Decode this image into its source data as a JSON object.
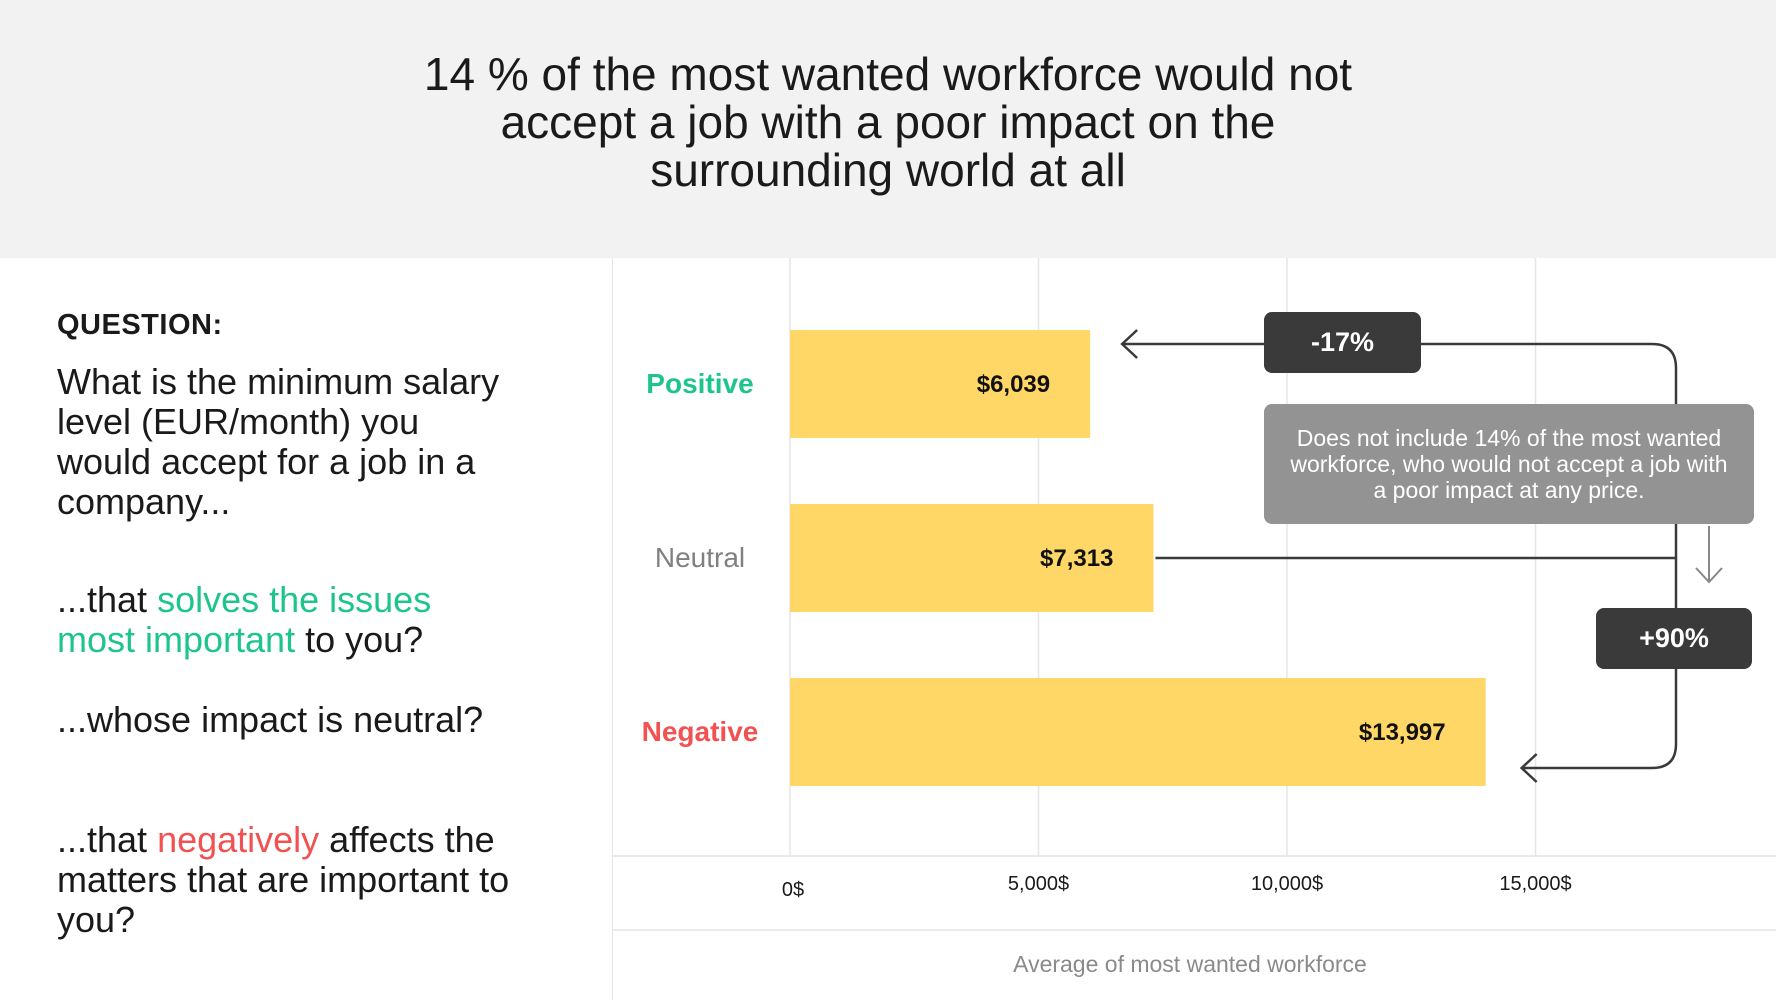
{
  "header": {
    "title": "14 % of the most wanted workforce would not accept a job with a poor impact on the surrounding world at all"
  },
  "question": {
    "label": "QUESTION:",
    "main": "What is the minimum salary level (EUR/month) you would accept for a job in a company...",
    "options": [
      {
        "pre": "...that ",
        "highlight": "solves the issues most important",
        "post": " to you?"
      },
      {
        "pre": "...whose impact is neutral?",
        "highlight": "",
        "post": ""
      },
      {
        "pre": "...that ",
        "highlight": "negatively",
        "post": " affects the matters that are important to you?"
      }
    ]
  },
  "chart_data": {
    "type": "bar",
    "orientation": "horizontal",
    "categories": [
      "Positive",
      "Neutral",
      "Negative"
    ],
    "values": [
      6039,
      7313,
      13997
    ],
    "value_labels": [
      "$6,039",
      "$7,313",
      "$13,997"
    ],
    "category_colors": [
      "#1ec58b",
      "#808080",
      "#f25151"
    ],
    "bar_color": "#ffd766",
    "xlim": [
      0,
      20000
    ],
    "ticks": [
      0,
      5000,
      10000,
      15000
    ],
    "tick_labels": [
      "0$",
      "5,000$",
      "10,000$",
      "15,000$"
    ],
    "xlabel": "Average of most wanted workforce",
    "grid": true,
    "annotations": {
      "decrease": "-17%",
      "increase": "+90%",
      "note": "Does not include 14% of the most wanted workforce, who would not accept a job with a poor impact at any price."
    }
  }
}
